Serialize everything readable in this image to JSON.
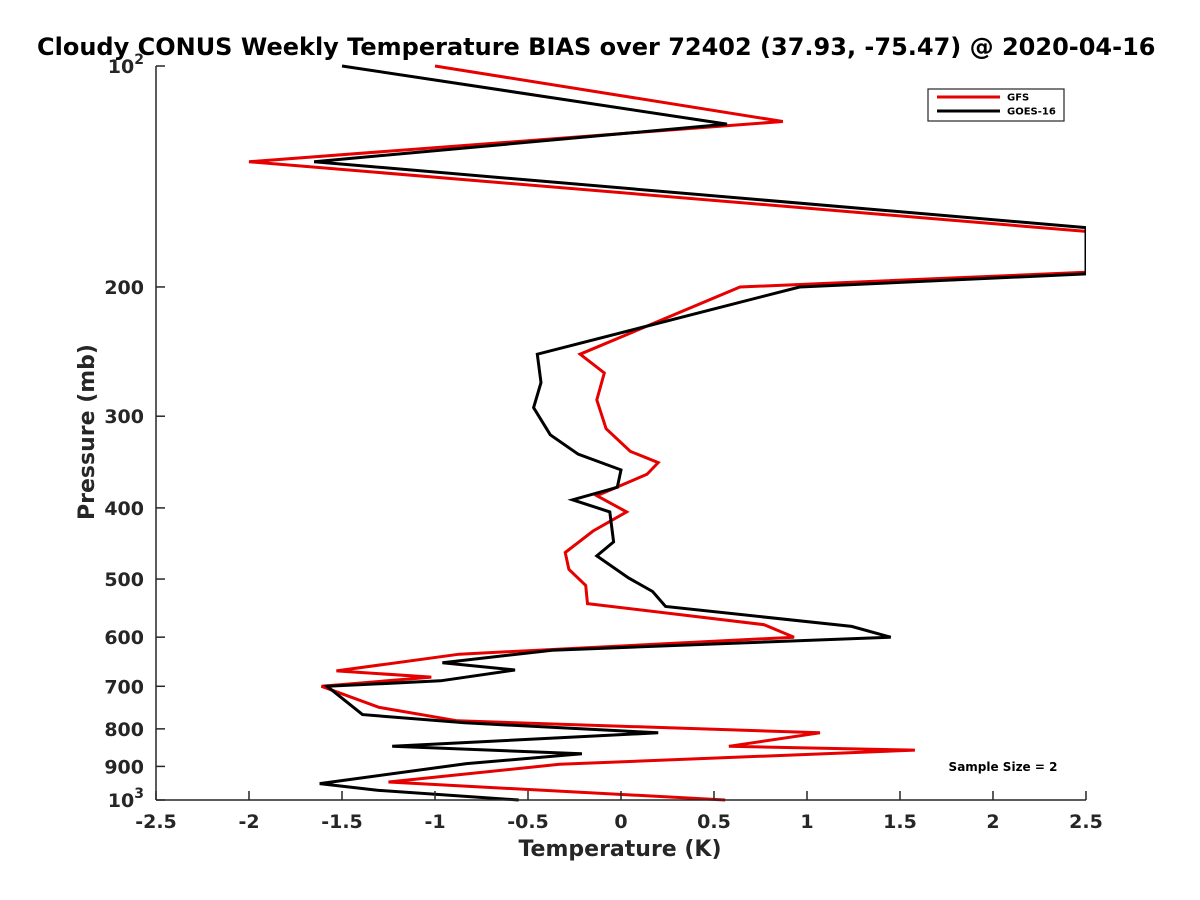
{
  "chart_data": {
    "type": "line",
    "title": "Cloudy CONUS Weekly Temperature BIAS over 72402 (37.93, -75.47) @ 2020-04-16",
    "xlabel": "Temperature (K)",
    "ylabel": "Pressure (mb)",
    "xlim": [
      -2.5,
      2.5
    ],
    "ylim": [
      100,
      1000
    ],
    "yscale": "log",
    "y_reversed": true,
    "grid": false,
    "legend_position": "top-right",
    "x_ticks": [
      "-2.5",
      "-2",
      "-1.5",
      "-1",
      "-0.5",
      "0",
      "0.5",
      "1",
      "1.5",
      "2",
      "2.5"
    ],
    "y_ticks": [
      {
        "value": 100,
        "base": "10",
        "exp": "2"
      },
      {
        "value": 200,
        "label": "200"
      },
      {
        "value": 300,
        "label": "300"
      },
      {
        "value": 400,
        "label": "400"
      },
      {
        "value": 500,
        "label": "500"
      },
      {
        "value": 600,
        "label": "600"
      },
      {
        "value": 700,
        "label": "700"
      },
      {
        "value": 800,
        "label": "800"
      },
      {
        "value": 900,
        "label": "900"
      },
      {
        "value": 1000,
        "base": "10",
        "exp": "3"
      }
    ],
    "annotation": "Sample Size = 2",
    "series": [
      {
        "name": "GFS",
        "color": "#e60000",
        "points": [
          [
            -1.0,
            100
          ],
          [
            0.87,
            119
          ],
          [
            -2.0,
            135
          ],
          [
            2.5,
            168
          ],
          [
            2.5,
            191
          ],
          [
            0.64,
            200
          ],
          [
            -0.22,
            247
          ],
          [
            -0.09,
            262
          ],
          [
            -0.13,
            285
          ],
          [
            -0.08,
            312
          ],
          [
            0.05,
            335
          ],
          [
            0.2,
            347
          ],
          [
            0.14,
            360
          ],
          [
            -0.13,
            385
          ],
          [
            0.03,
            405
          ],
          [
            -0.15,
            430
          ],
          [
            -0.3,
            460
          ],
          [
            -0.28,
            485
          ],
          [
            -0.19,
            510
          ],
          [
            -0.18,
            540
          ],
          [
            0.77,
            577
          ],
          [
            0.93,
            600
          ],
          [
            -0.87,
            633
          ],
          [
            -1.53,
            667
          ],
          [
            -1.02,
            680
          ],
          [
            -1.61,
            700
          ],
          [
            -1.3,
            748
          ],
          [
            -0.88,
            780
          ],
          [
            1.07,
            810
          ],
          [
            0.58,
            845
          ],
          [
            1.58,
            855
          ],
          [
            -0.33,
            894
          ],
          [
            -1.25,
            945
          ],
          [
            0.56,
            1000
          ]
        ]
      },
      {
        "name": "GOES-16",
        "color": "#000000",
        "points": [
          [
            -1.5,
            100
          ],
          [
            0.57,
            120
          ],
          [
            -1.65,
            135
          ],
          [
            2.5,
            166
          ],
          [
            2.5,
            192
          ],
          [
            0.96,
            200
          ],
          [
            -0.45,
            247
          ],
          [
            -0.43,
            270
          ],
          [
            -0.47,
            292
          ],
          [
            -0.38,
            318
          ],
          [
            -0.23,
            338
          ],
          [
            0.0,
            355
          ],
          [
            -0.02,
            375
          ],
          [
            -0.26,
            390
          ],
          [
            -0.06,
            405
          ],
          [
            -0.04,
            445
          ],
          [
            -0.13,
            465
          ],
          [
            0.04,
            498
          ],
          [
            0.17,
            520
          ],
          [
            0.24,
            545
          ],
          [
            1.24,
            580
          ],
          [
            1.45,
            600
          ],
          [
            -0.37,
            625
          ],
          [
            -0.96,
            650
          ],
          [
            -0.57,
            665
          ],
          [
            -0.97,
            688
          ],
          [
            -1.58,
            700
          ],
          [
            -1.49,
            730
          ],
          [
            -1.39,
            765
          ],
          [
            -0.84,
            785
          ],
          [
            0.2,
            810
          ],
          [
            -1.23,
            845
          ],
          [
            -0.21,
            865
          ],
          [
            -0.83,
            892
          ],
          [
            -1.62,
            950
          ],
          [
            -1.31,
            970
          ],
          [
            -0.55,
            1000
          ]
        ]
      }
    ]
  }
}
